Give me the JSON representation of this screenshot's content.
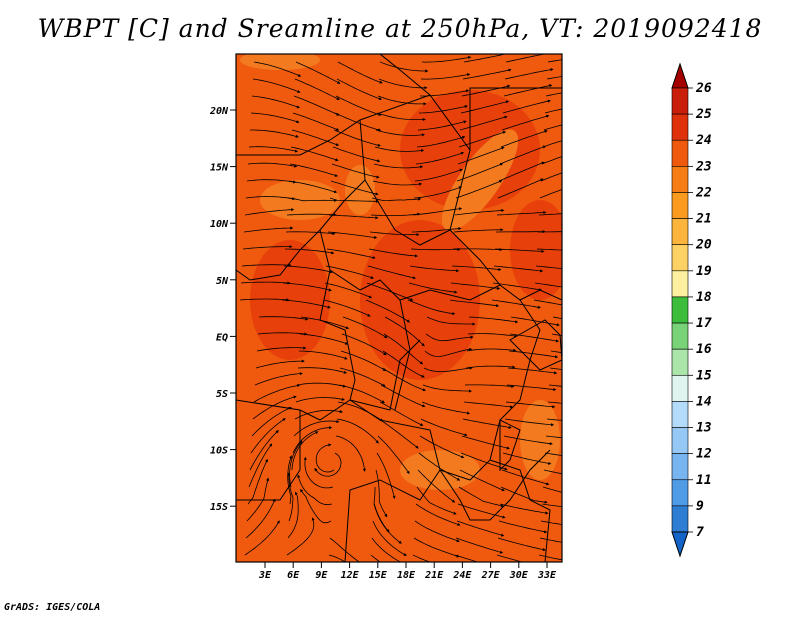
{
  "title": "WBPT [C] and Sreamline at 250hPa, VT: 2019092418",
  "credit": "GrADS: IGES/COLA",
  "map": {
    "fill_color": "#f05a0f",
    "patch_dark": "#e8400a",
    "patch_light": "#f47a20",
    "lat_labels": [
      "20N",
      "15N",
      "10N",
      "5N",
      "EQ",
      "5S",
      "10S",
      "15S"
    ],
    "lon_labels": [
      "3E",
      "6E",
      "9E",
      "12E",
      "15E",
      "18E",
      "21E",
      "24E",
      "27E",
      "30E",
      "33E"
    ]
  },
  "colorbar": {
    "labels": [
      "26",
      "25",
      "24",
      "23",
      "22",
      "21",
      "20",
      "19",
      "18",
      "17",
      "16",
      "15",
      "14",
      "13",
      "12",
      "11",
      "9",
      "7"
    ],
    "colors": [
      "#a50000",
      "#c81e0a",
      "#e0320a",
      "#f05a0f",
      "#f57d14",
      "#fa9a1e",
      "#fbb43c",
      "#fcd264",
      "#fdf0a0",
      "#3cbe3c",
      "#78d278",
      "#aae6aa",
      "#e1f5f0",
      "#b4dcfa",
      "#96c8f5",
      "#78b4f0",
      "#509be6",
      "#2d7dd2",
      "#1464c8"
    ]
  }
}
